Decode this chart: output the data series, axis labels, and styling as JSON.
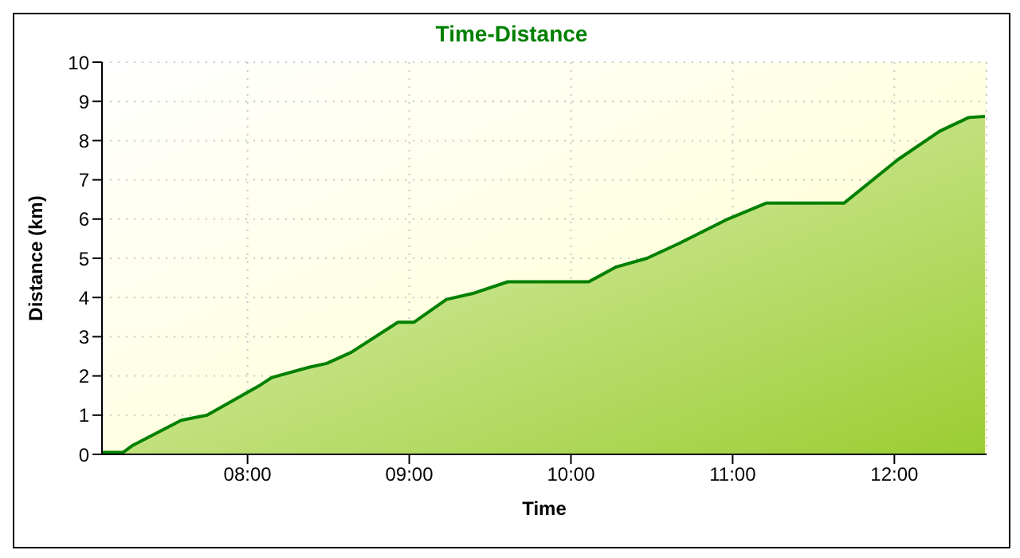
{
  "chart_data": {
    "type": "area",
    "title": "Time-Distance",
    "xlabel": "Time",
    "ylabel": "Distance (km)",
    "x": [
      7.1,
      7.23,
      7.29,
      7.59,
      7.75,
      8.08,
      8.15,
      8.38,
      8.49,
      8.64,
      8.93,
      9.03,
      9.23,
      9.39,
      9.61,
      10.11,
      10.28,
      10.47,
      10.67,
      10.97,
      11.21,
      11.69,
      12.02,
      12.28,
      12.46,
      12.56
    ],
    "series": [
      {
        "color": "#008000",
        "values": [
          0.05,
          0.05,
          0.23,
          0.87,
          1.0,
          1.77,
          1.96,
          2.22,
          2.32,
          2.6,
          3.37,
          3.37,
          3.95,
          4.1,
          4.4,
          4.4,
          4.78,
          5.0,
          5.38,
          6.0,
          6.41,
          6.41,
          7.51,
          8.24,
          8.59,
          8.62
        ]
      }
    ],
    "xlim": [
      7.1,
      12.57
    ],
    "xticks": [
      {
        "value": 8,
        "label": "08:00"
      },
      {
        "value": 9,
        "label": "09:00"
      },
      {
        "value": 10,
        "label": "10:00"
      },
      {
        "value": 11,
        "label": "11:00"
      },
      {
        "value": 12,
        "label": "12:00"
      }
    ],
    "ylim": [
      0,
      10
    ],
    "yticks": [
      0,
      1,
      2,
      3,
      4,
      5,
      6,
      7,
      8,
      9,
      10
    ],
    "grid": true,
    "legend": false,
    "marker": "none",
    "line_style": "solid"
  }
}
